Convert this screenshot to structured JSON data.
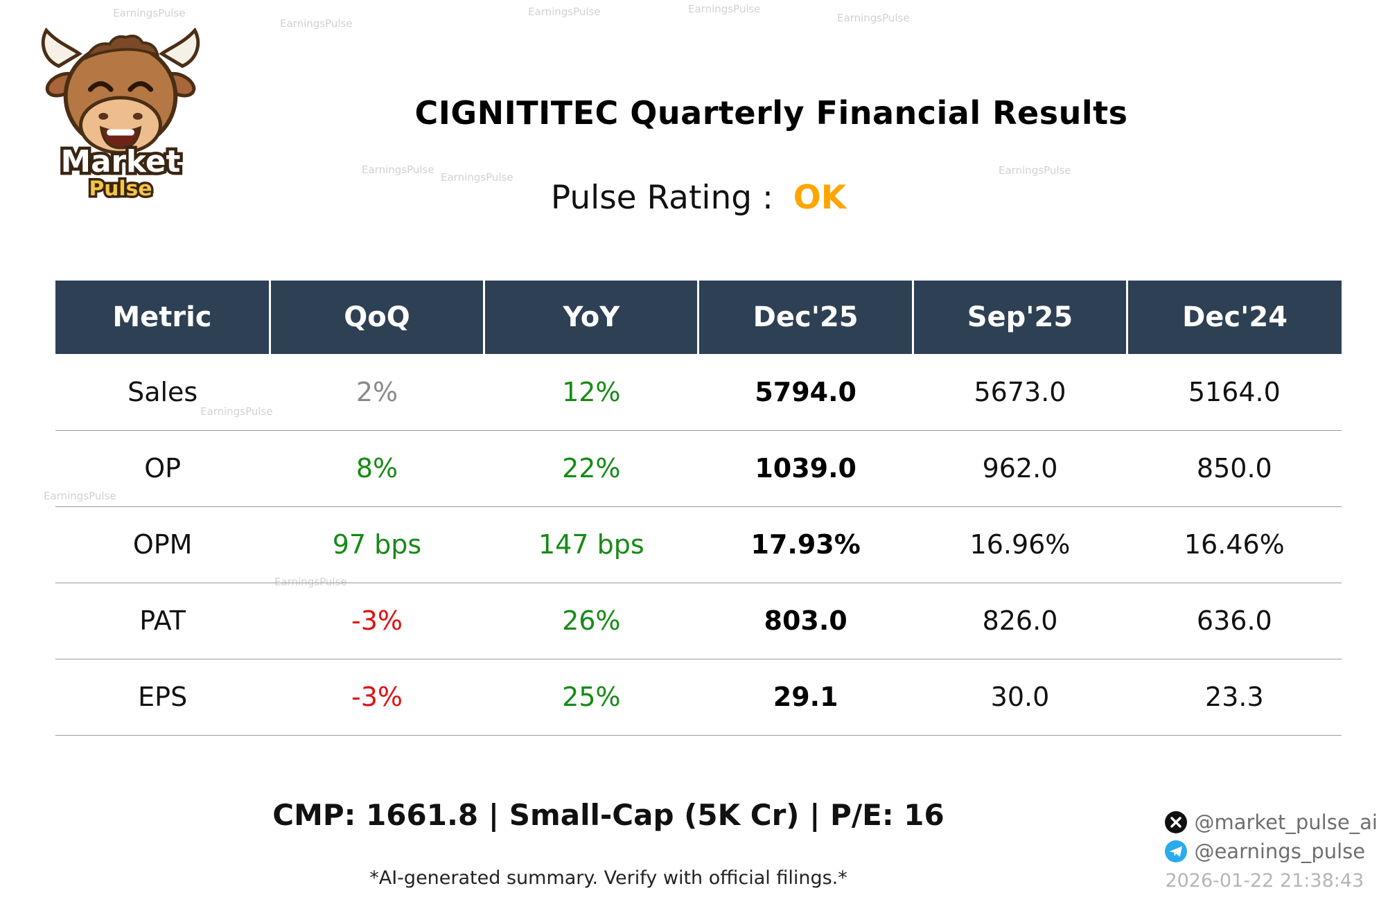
{
  "colors": {
    "header_bg": "#2e4053",
    "pos": "#168a16",
    "neg": "#e01212",
    "muted": "#8a8a8a",
    "accent": "#FFA500"
  },
  "logo": {
    "line1": "Market",
    "line2": "Pulse"
  },
  "watermark": {
    "text": "EarningsPulse"
  },
  "header": {
    "title": "CIGNITITEC Quarterly Financial Results",
    "rating_label": "Pulse Rating :",
    "rating_value": "OK"
  },
  "table": {
    "headers": [
      "Metric",
      "QoQ",
      "YoY",
      "Dec'25",
      "Sep'25",
      "Dec'24"
    ],
    "rows": [
      {
        "metric": "Sales",
        "qoq": "2%",
        "qoq_class": "muted",
        "yoy": "12%",
        "yoy_class": "pos",
        "values": [
          "5794.0",
          "5673.0",
          "5164.0"
        ]
      },
      {
        "metric": "OP",
        "qoq": "8%",
        "qoq_class": "pos",
        "yoy": "22%",
        "yoy_class": "pos",
        "values": [
          "1039.0",
          "962.0",
          "850.0"
        ]
      },
      {
        "metric": "OPM",
        "qoq": "97 bps",
        "qoq_class": "pos",
        "yoy": "147 bps",
        "yoy_class": "pos",
        "values": [
          "17.93%",
          "16.96%",
          "16.46%"
        ]
      },
      {
        "metric": "PAT",
        "qoq": "-3%",
        "qoq_class": "neg",
        "yoy": "26%",
        "yoy_class": "pos",
        "values": [
          "803.0",
          "826.0",
          "636.0"
        ]
      },
      {
        "metric": "EPS",
        "qoq": "-3%",
        "qoq_class": "neg",
        "yoy": "25%",
        "yoy_class": "pos",
        "values": [
          "29.1",
          "30.0",
          "23.3"
        ]
      }
    ]
  },
  "footer": {
    "summary": "CMP: 1661.8 | Small-Cap (5K Cr) | P/E: 16",
    "disclaimer": "*AI-generated summary. Verify with official filings.*",
    "twitter_handle": "@market_pulse_ai",
    "telegram_handle": "@earnings_pulse",
    "timestamp": "2026-01-22 21:38:43"
  }
}
